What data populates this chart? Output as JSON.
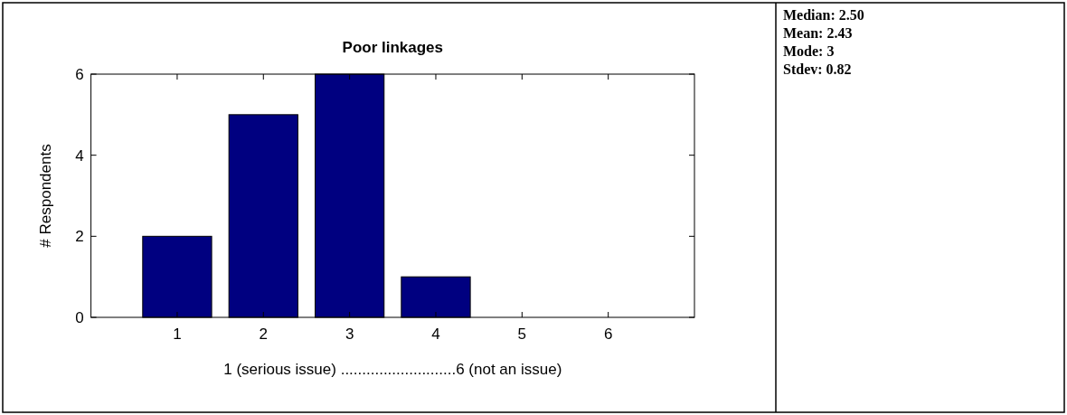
{
  "chart_data": {
    "type": "bar",
    "title": "Poor linkages",
    "xlabel": "1 (serious issue) ...........................6 (not an issue)",
    "ylabel": "# Respondents",
    "x": [
      1,
      2,
      3,
      4,
      5,
      6
    ],
    "values": [
      2,
      5,
      6,
      1,
      0,
      0
    ],
    "color": "#000080",
    "xlim": [
      0,
      7
    ],
    "xticks": [
      1,
      2,
      3,
      4,
      5,
      6
    ],
    "ylim": [
      0,
      6
    ],
    "yticks": [
      0,
      2,
      4,
      6
    ],
    "grid": false,
    "annotations": [
      "Median: 2.50",
      "Mean: 2.43",
      "Mode: 3",
      "Stdev: 0.82"
    ]
  }
}
